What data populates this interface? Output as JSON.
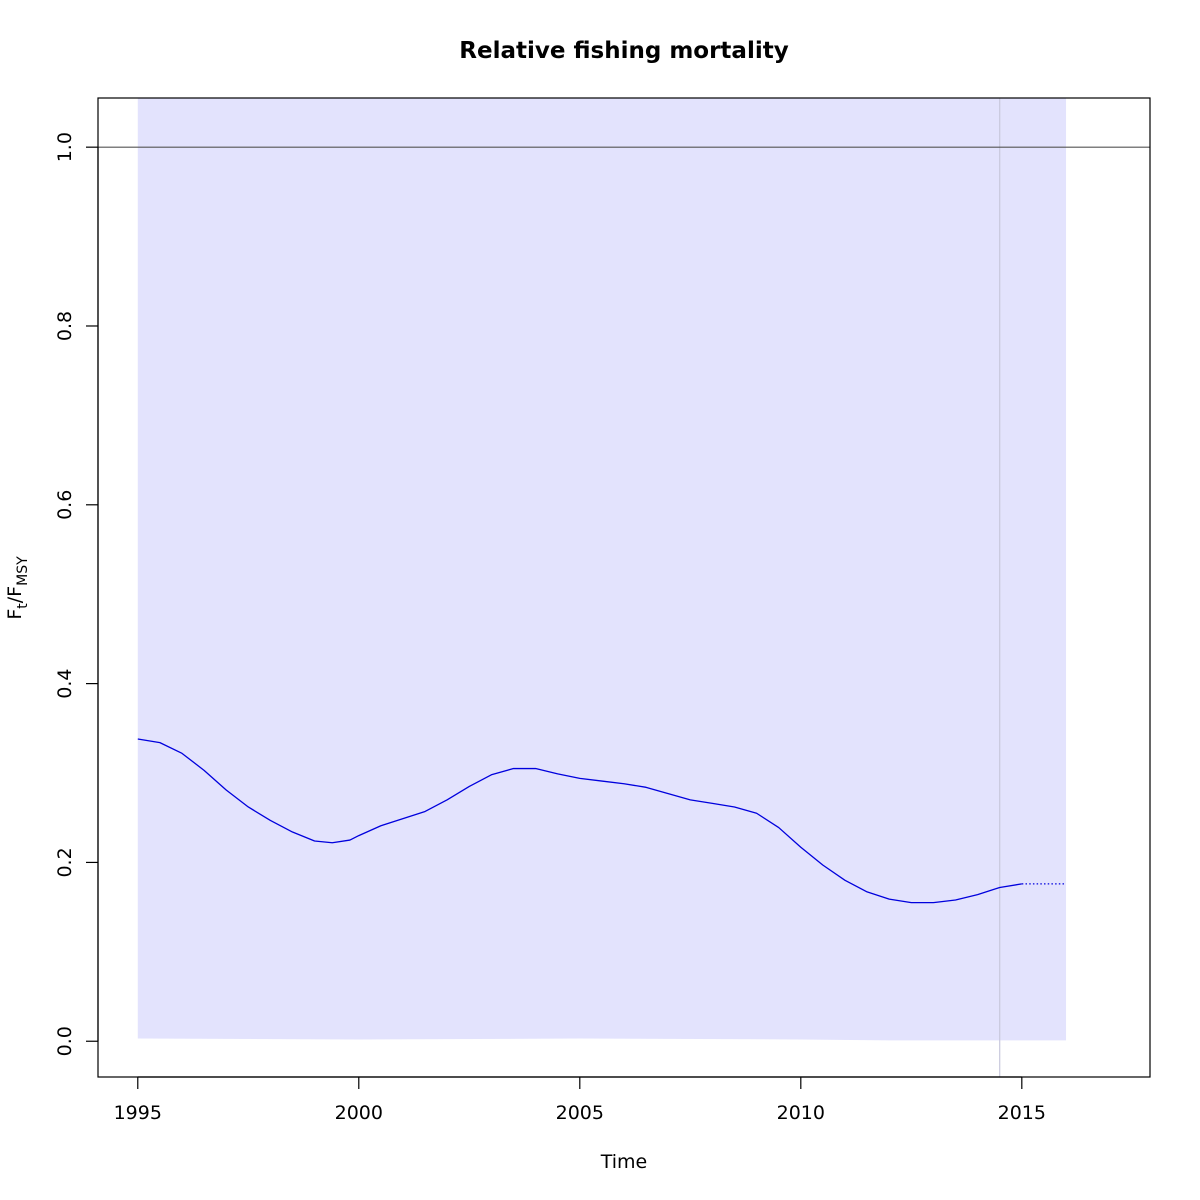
{
  "chart_data": {
    "type": "line",
    "title": "Relative fishing mortality",
    "xlabel": "Time",
    "ylabel": {
      "main": "F",
      "sub1": "t",
      "slash": "/",
      "main2": "F",
      "sub2": "MSY"
    },
    "xlim": [
      1994.1,
      2017.9
    ],
    "ylim": [
      -0.04,
      1.055
    ],
    "x_ticks": [
      1995,
      2000,
      2005,
      2010,
      2015
    ],
    "y_ticks": [
      0.0,
      0.2,
      0.4,
      0.6,
      0.8,
      1.0
    ],
    "y_tick_labels": [
      "0.0",
      "0.2",
      "0.4",
      "0.6",
      "0.8",
      "1.0"
    ],
    "reference_line": {
      "y": 1.0,
      "color": "#555555"
    },
    "vertical_marker": {
      "x": 2014.5,
      "color": "#c8c8dc"
    },
    "confidence_band": {
      "color": "#e3e3fd",
      "x": [
        1995,
        2000,
        2005,
        2010,
        2012,
        2014,
        2016
      ],
      "lower": [
        0.003,
        0.002,
        0.003,
        0.002,
        0.001,
        0.001,
        0.001
      ],
      "upper_clipped": true
    },
    "series": [
      {
        "style": "solid",
        "color": "#0000dd",
        "x": [
          1995.0,
          1995.5,
          1996.0,
          1996.5,
          1997.0,
          1997.5,
          1998.0,
          1998.5,
          1999.0,
          1999.4,
          1999.8,
          2000.0,
          2000.5,
          2001.0,
          2001.5,
          2002.0,
          2002.5,
          2003.0,
          2003.5,
          2004.0,
          2004.5,
          2005.0,
          2005.5,
          2006.0,
          2006.5,
          2007.0,
          2007.5,
          2008.0,
          2008.5,
          2009.0,
          2009.5,
          2010.0,
          2010.5,
          2011.0,
          2011.5,
          2012.0,
          2012.5,
          2013.0,
          2013.5,
          2014.0,
          2014.5,
          2015.0
        ],
        "y": [
          0.338,
          0.334,
          0.322,
          0.303,
          0.281,
          0.262,
          0.247,
          0.234,
          0.224,
          0.222,
          0.225,
          0.23,
          0.241,
          0.249,
          0.257,
          0.27,
          0.285,
          0.298,
          0.305,
          0.305,
          0.299,
          0.294,
          0.291,
          0.288,
          0.284,
          0.277,
          0.27,
          0.266,
          0.262,
          0.255,
          0.239,
          0.217,
          0.197,
          0.18,
          0.167,
          0.159,
          0.155,
          0.155,
          0.158,
          0.164,
          0.172,
          0.176
        ]
      },
      {
        "style": "dotted",
        "color": "#0000dd",
        "x": [
          2015.0,
          2016.0
        ],
        "y": [
          0.176,
          0.176
        ]
      }
    ]
  }
}
